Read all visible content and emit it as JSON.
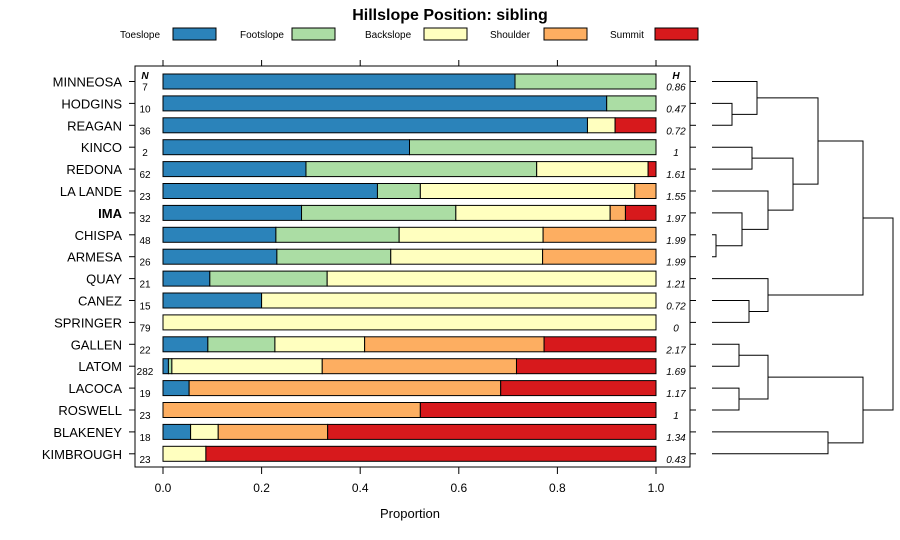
{
  "chart_data": {
    "type": "bar",
    "orientation": "horizontal-stacked",
    "title": "Hillslope Position: sibling",
    "xlabel": "Proportion",
    "xlim": [
      0,
      1
    ],
    "xticks": [
      "0.0",
      "0.2",
      "0.4",
      "0.6",
      "0.8",
      "1.0"
    ],
    "n_header": "N",
    "h_header": "H",
    "series": [
      {
        "name": "Toeslope",
        "color": "#2B83BA"
      },
      {
        "name": "Footslope",
        "color": "#ABDDA4"
      },
      {
        "name": "Backslope",
        "color": "#FFFFBF"
      },
      {
        "name": "Shoulder",
        "color": "#FDAE61"
      },
      {
        "name": "Summit",
        "color": "#D7191C"
      }
    ],
    "rows": [
      {
        "label": "MINNEOSA",
        "n": "7",
        "h": "0.86",
        "values": [
          0.714,
          0.286,
          0,
          0,
          0
        ]
      },
      {
        "label": "HODGINS",
        "n": "10",
        "h": "0.47",
        "values": [
          0.9,
          0.1,
          0,
          0,
          0
        ]
      },
      {
        "label": "REAGAN",
        "n": "36",
        "h": "0.72",
        "values": [
          0.861,
          0,
          0.056,
          0,
          0.083
        ]
      },
      {
        "label": "KINCO",
        "n": "2",
        "h": "1",
        "values": [
          0.5,
          0.5,
          0,
          0,
          0
        ]
      },
      {
        "label": "REDONA",
        "n": "62",
        "h": "1.61",
        "values": [
          0.29,
          0.468,
          0.226,
          0,
          0.016
        ]
      },
      {
        "label": "LA LANDE",
        "n": "23",
        "h": "1.55",
        "values": [
          0.435,
          0.087,
          0.435,
          0.043,
          0
        ]
      },
      {
        "label": "IMA",
        "n": "32",
        "h": "1.97",
        "values": [
          0.281,
          0.313,
          0.313,
          0.031,
          0.062
        ],
        "bold": true
      },
      {
        "label": "CHISPA",
        "n": "48",
        "h": "1.99",
        "values": [
          0.229,
          0.25,
          0.292,
          0.229,
          0
        ]
      },
      {
        "label": "ARMESA",
        "n": "26",
        "h": "1.99",
        "values": [
          0.231,
          0.231,
          0.308,
          0.23,
          0
        ]
      },
      {
        "label": "QUAY",
        "n": "21",
        "h": "1.21",
        "values": [
          0.095,
          0.238,
          0.667,
          0,
          0
        ]
      },
      {
        "label": "CANEZ",
        "n": "15",
        "h": "0.72",
        "values": [
          0.2,
          0,
          0.8,
          0,
          0
        ]
      },
      {
        "label": "SPRINGER",
        "n": "79",
        "h": "0",
        "values": [
          0,
          0,
          1.0,
          0,
          0
        ]
      },
      {
        "label": "GALLEN",
        "n": "22",
        "h": "2.17",
        "values": [
          0.091,
          0.136,
          0.182,
          0.364,
          0.227
        ]
      },
      {
        "label": "LATOM",
        "n": "282",
        "h": "1.69",
        "values": [
          0.011,
          0.007,
          0.305,
          0.394,
          0.283
        ]
      },
      {
        "label": "LACOCA",
        "n": "19",
        "h": "1.17",
        "values": [
          0.053,
          0,
          0,
          0.632,
          0.315
        ]
      },
      {
        "label": "ROSWELL",
        "n": "23",
        "h": "1",
        "values": [
          0,
          0,
          0,
          0.522,
          0.478
        ]
      },
      {
        "label": "BLAKENEY",
        "n": "18",
        "h": "1.34",
        "values": [
          0.056,
          0,
          0.056,
          0.222,
          0.666
        ]
      },
      {
        "label": "KIMBROUGH",
        "n": "23",
        "h": "0.43",
        "values": [
          0,
          0,
          0.087,
          0,
          0.913
        ]
      }
    ]
  }
}
